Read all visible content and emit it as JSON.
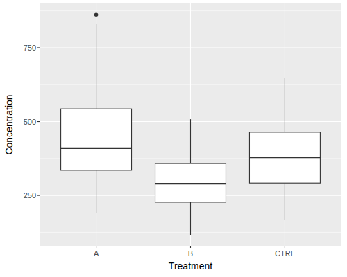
{
  "chart_data": {
    "type": "box",
    "x_label": "Treatment",
    "y_label": "Concentration",
    "categories": [
      "A",
      "B",
      "CTRL"
    ],
    "whisker_low": [
      191,
      116,
      168
    ],
    "q1": [
      335,
      227,
      292
    ],
    "median": [
      410,
      290,
      379
    ],
    "q3": [
      543,
      358,
      464
    ],
    "whisker_high": [
      832,
      508,
      649
    ],
    "outliers": [
      [
        862
      ],
      [],
      []
    ],
    "ylim": [
      79,
      900
    ],
    "yticks": [
      250,
      500,
      750
    ],
    "grid": true
  }
}
